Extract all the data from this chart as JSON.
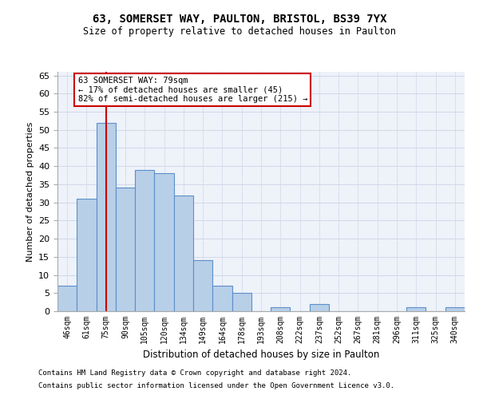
{
  "title1": "63, SOMERSET WAY, PAULTON, BRISTOL, BS39 7YX",
  "title2": "Size of property relative to detached houses in Paulton",
  "xlabel": "Distribution of detached houses by size in Paulton",
  "ylabel": "Number of detached properties",
  "categories": [
    "46sqm",
    "61sqm",
    "75sqm",
    "90sqm",
    "105sqm",
    "120sqm",
    "134sqm",
    "149sqm",
    "164sqm",
    "178sqm",
    "193sqm",
    "208sqm",
    "222sqm",
    "237sqm",
    "252sqm",
    "267sqm",
    "281sqm",
    "296sqm",
    "311sqm",
    "325sqm",
    "340sqm"
  ],
  "values": [
    7,
    31,
    52,
    34,
    39,
    38,
    32,
    14,
    7,
    5,
    0,
    1,
    0,
    2,
    0,
    0,
    0,
    0,
    1,
    0,
    1
  ],
  "bar_color": "#b8cfe8",
  "bar_edge_color": "#5b8fc9",
  "highlight_index": 2,
  "highlight_line_color": "#cc0000",
  "ylim": [
    0,
    66
  ],
  "yticks": [
    0,
    5,
    10,
    15,
    20,
    25,
    30,
    35,
    40,
    45,
    50,
    55,
    60,
    65
  ],
  "annotation_text": "63 SOMERSET WAY: 79sqm\n← 17% of detached houses are smaller (45)\n82% of semi-detached houses are larger (215) →",
  "annotation_box_color": "#ffffff",
  "annotation_box_edge_color": "#cc0000",
  "footer1": "Contains HM Land Registry data © Crown copyright and database right 2024.",
  "footer2": "Contains public sector information licensed under the Open Government Licence v3.0.",
  "grid_color": "#d0d8e8",
  "background_color": "#eef2f9"
}
